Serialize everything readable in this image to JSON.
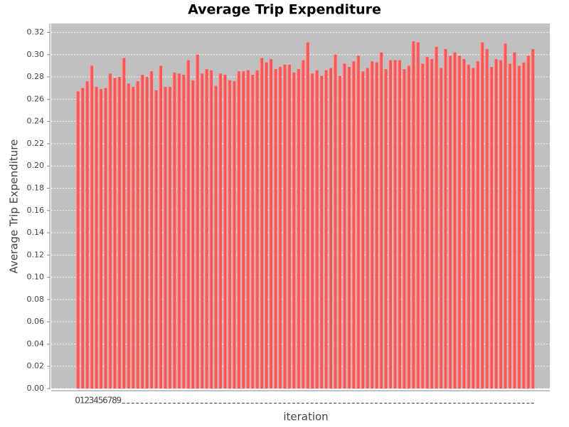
{
  "chart_data": {
    "type": "bar",
    "title": "Average Trip Expenditure",
    "x_label": "iteration",
    "y_label": "Average Trip Expenditure",
    "categories": [
      "0",
      "1",
      "2",
      "3",
      "4",
      "5",
      "6",
      "7",
      "8",
      "9",
      null,
      null,
      null,
      null,
      null,
      null,
      null,
      null,
      null,
      null,
      null,
      null,
      null,
      null,
      null,
      null,
      null,
      null,
      null,
      null,
      null,
      null,
      null,
      null,
      null,
      null,
      null,
      null,
      null,
      null,
      null,
      null,
      null,
      null,
      null,
      null,
      null,
      null,
      null,
      null,
      null,
      null,
      null,
      null,
      null,
      null,
      null,
      null,
      null,
      null,
      null,
      null,
      null,
      null,
      null,
      null,
      null,
      null,
      null,
      null,
      null,
      null,
      null,
      null,
      null,
      null,
      null,
      null,
      null,
      null,
      null,
      null,
      null,
      null,
      null,
      null,
      null,
      null,
      null,
      null,
      null,
      null,
      null,
      null,
      null,
      null,
      null,
      null,
      null,
      null
    ],
    "values": [
      0.267,
      0.27,
      0.276,
      0.29,
      0.271,
      0.269,
      0.27,
      0.283,
      0.279,
      0.28,
      0.297,
      0.274,
      0.271,
      0.276,
      0.282,
      0.28,
      0.285,
      0.268,
      0.29,
      0.271,
      0.271,
      0.284,
      0.283,
      0.282,
      0.295,
      0.277,
      0.3,
      0.283,
      0.287,
      0.286,
      0.272,
      0.283,
      0.282,
      0.277,
      0.276,
      0.285,
      0.285,
      0.286,
      0.282,
      0.286,
      0.297,
      0.293,
      0.296,
      0.287,
      0.289,
      0.291,
      0.291,
      0.284,
      0.287,
      0.295,
      0.311,
      0.283,
      0.286,
      0.281,
      0.286,
      0.288,
      0.3,
      0.281,
      0.292,
      0.289,
      0.294,
      0.299,
      0.285,
      0.288,
      0.294,
      0.293,
      0.302,
      0.287,
      0.295,
      0.295,
      0.295,
      0.287,
      0.29,
      0.312,
      0.311,
      0.292,
      0.298,
      0.296,
      0.307,
      0.288,
      0.305,
      0.299,
      0.302,
      0.299,
      0.296,
      0.291,
      0.288,
      0.294,
      0.311,
      0.305,
      0.289,
      0.296,
      0.295,
      0.31,
      0.292,
      0.302,
      0.29,
      0.293,
      0.299,
      0.305
    ],
    "color": "#ff5555",
    "ylim": [
      0,
      0.328
    ],
    "yticks": [
      {
        "value": 0,
        "label": "0.00"
      },
      {
        "value": 0.02,
        "label": "0.02"
      },
      {
        "value": 0.04,
        "label": "0.04"
      },
      {
        "value": 0.06,
        "label": "0.06"
      },
      {
        "value": 0.08,
        "label": "0.08"
      },
      {
        "value": 0.1,
        "label": "0.10"
      },
      {
        "value": 0.12,
        "label": "0.12"
      },
      {
        "value": 0.14,
        "label": "0.14"
      },
      {
        "value": 0.16,
        "label": "0.16"
      },
      {
        "value": 0.18,
        "label": "0.18"
      },
      {
        "value": 0.2,
        "label": "0.20"
      },
      {
        "value": 0.22,
        "label": "0.22"
      },
      {
        "value": 0.24,
        "label": "0.24"
      },
      {
        "value": 0.26,
        "label": "0.26"
      },
      {
        "value": 0.28,
        "label": "0.28"
      },
      {
        "value": 0.3,
        "label": "0.30"
      },
      {
        "value": 0.32,
        "label": "0.32"
      }
    ],
    "grid": true
  }
}
